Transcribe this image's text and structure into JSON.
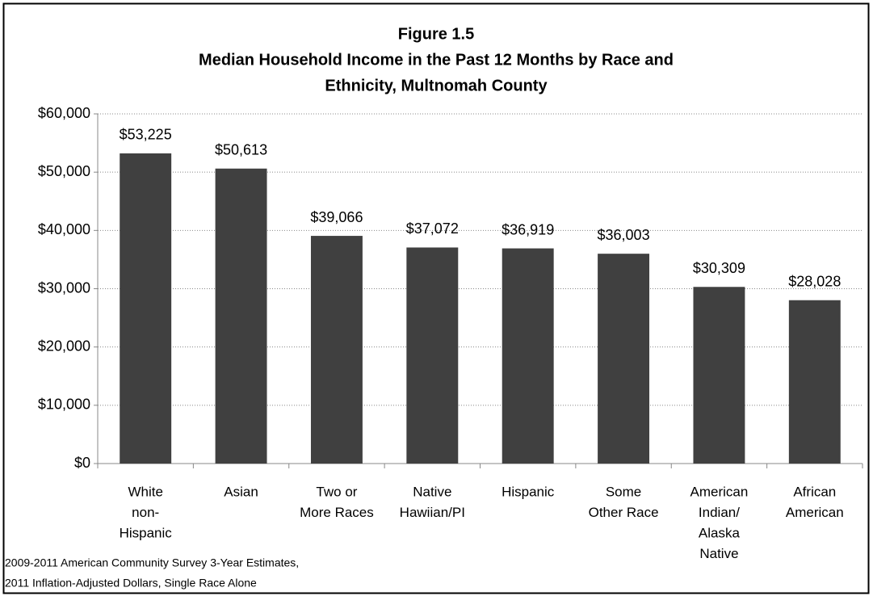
{
  "chart_data": {
    "type": "bar",
    "title": [
      "Figure 1.5",
      "Median Household Income in the Past 12 Months by Race and",
      "Ethnicity, Multnomah County"
    ],
    "categories": [
      [
        "White",
        "non-",
        "Hispanic"
      ],
      [
        "Asian"
      ],
      [
        "Two or",
        "More Races"
      ],
      [
        "Native",
        "Hawiian/PI"
      ],
      [
        "Hispanic"
      ],
      [
        "Some",
        "Other Race"
      ],
      [
        "American",
        "Indian/",
        "Alaska",
        "Native"
      ],
      [
        "African",
        "American"
      ]
    ],
    "values": [
      53225,
      50613,
      39066,
      37072,
      36919,
      36003,
      30309,
      28028
    ],
    "value_labels": [
      "$53,225",
      "$50,613",
      "$39,066",
      "$37,072",
      "$36,919",
      "$36,003",
      "$30,309",
      "$28,028"
    ],
    "color": "#404040",
    "ylim": [
      0,
      60000
    ],
    "yticks": [
      {
        "value": 0,
        "label": "$0"
      },
      {
        "value": 10000,
        "label": "$10,000"
      },
      {
        "value": 20000,
        "label": "$20,000"
      },
      {
        "value": 30000,
        "label": "$30,000"
      },
      {
        "value": 40000,
        "label": "$40,000"
      },
      {
        "value": 50000,
        "label": "$50,000"
      },
      {
        "value": 60000,
        "label": "$60,000"
      }
    ],
    "grid": true,
    "note": [
      "2009-2011  American Community Survey 3-Year Estimates,",
      "2011 Inflation-Adjusted Dollars, Single Race Alone"
    ]
  }
}
